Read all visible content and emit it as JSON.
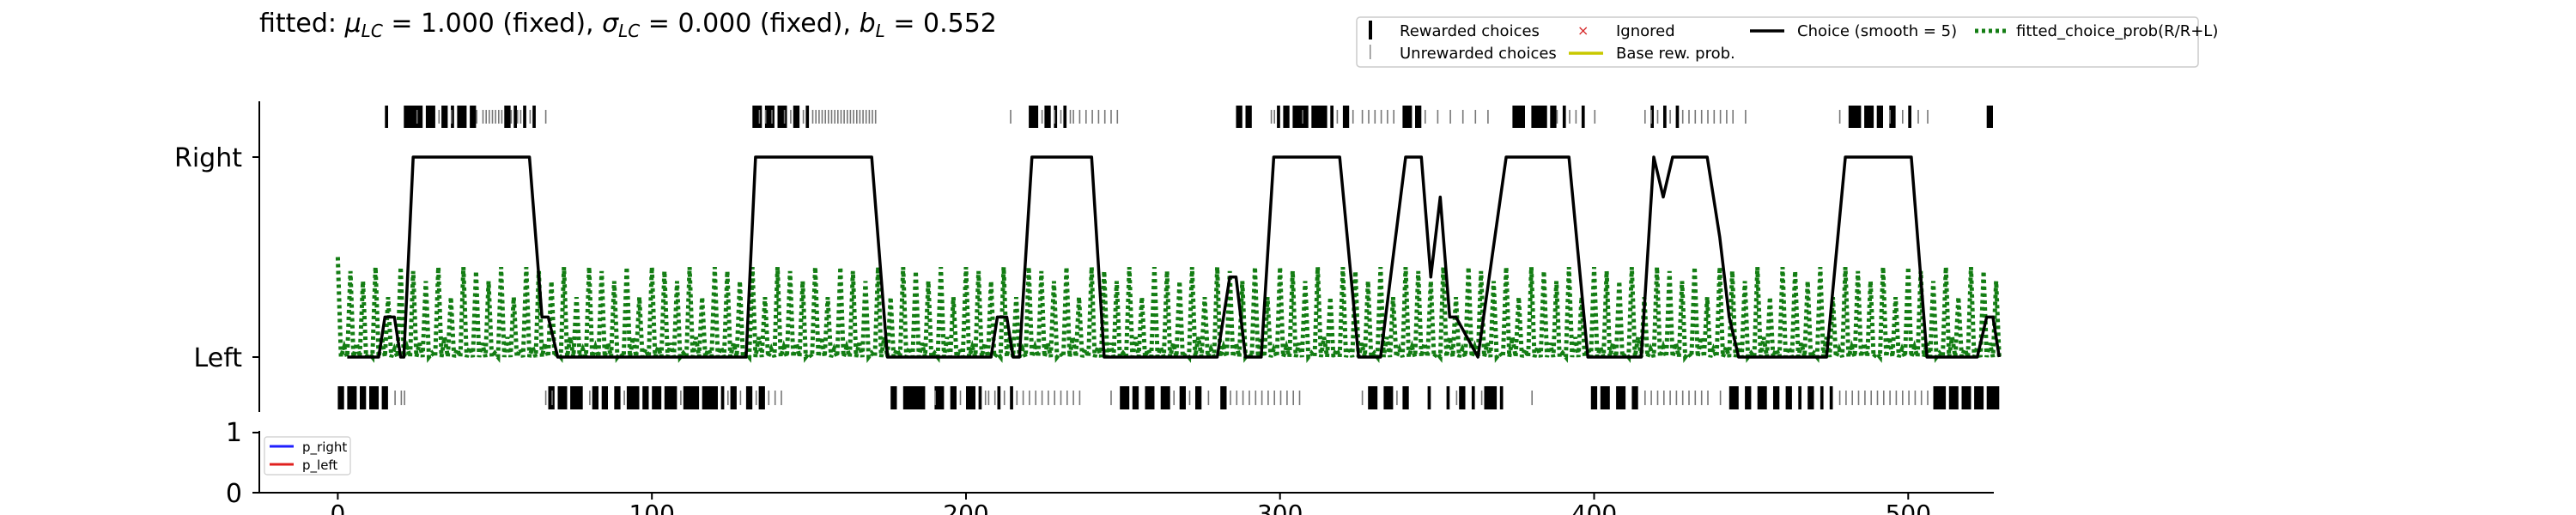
{
  "chart_data": [
    {
      "type": "line",
      "title": "fitted: μLC = 1.000 (fixed), σLC = 0.000 (fixed), bL = 0.552",
      "title_parts": {
        "prefix": "fitted: ",
        "mu_symbol": "μ",
        "mu_sub": "LC",
        "mu_value": " = 1.000 (fixed), ",
        "sigma_symbol": "σ",
        "sigma_sub": "LC",
        "sigma_value": " = 0.000 (fixed), ",
        "b_symbol": "b",
        "b_sub": "L",
        "b_value": " = 0.552"
      },
      "xlim": [
        -25,
        530
      ],
      "ylim": [
        -0.28,
        1.28
      ],
      "ytick_labels": [
        "Left",
        "Right"
      ],
      "ytick_values": [
        0,
        1
      ],
      "legend": {
        "placement": "top-right",
        "entries": [
          {
            "label": "Rewarded choices",
            "style": "thick-tick",
            "color": "#000000"
          },
          {
            "label": "Unrewarded choices",
            "style": "thin-tick",
            "color": "#888888"
          },
          {
            "label": "Ignored",
            "style": "x-marker",
            "color": "#d62728"
          },
          {
            "label": "Base rew. prob.",
            "style": "line",
            "color": "#c8c800"
          },
          {
            "label": "Choice (smooth = 5)",
            "style": "line",
            "color": "#000000"
          },
          {
            "label": "fitted_choice_prob(R/R+L)",
            "style": "dotted",
            "color": "#137d13"
          }
        ]
      },
      "series": [
        {
          "name": "Choice (smooth = 5)",
          "color": "#000000",
          "points": [
            [
              3,
              0
            ],
            [
              13,
              0
            ],
            [
              15,
              0.2
            ],
            [
              18,
              0.2
            ],
            [
              20,
              0
            ],
            [
              21,
              0
            ],
            [
              24,
              1
            ],
            [
              61,
              1
            ],
            [
              63,
              0.6
            ],
            [
              65,
              0.2
            ],
            [
              67,
              0.2
            ],
            [
              70,
              0
            ],
            [
              130,
              0
            ],
            [
              133,
              1
            ],
            [
              170,
              1
            ],
            [
              175,
              0
            ],
            [
              208,
              0
            ],
            [
              210,
              0.2
            ],
            [
              213,
              0.2
            ],
            [
              215,
              0
            ],
            [
              217,
              0
            ],
            [
              221,
              1
            ],
            [
              240,
              1
            ],
            [
              244,
              0
            ],
            [
              280,
              0
            ],
            [
              284,
              0.4
            ],
            [
              286,
              0.4
            ],
            [
              289,
              0
            ],
            [
              294,
              0
            ],
            [
              298,
              1
            ],
            [
              319,
              1
            ],
            [
              325,
              0
            ],
            [
              332,
              0
            ],
            [
              340,
              1
            ],
            [
              345,
              1
            ],
            [
              348,
              0.4
            ],
            [
              351,
              0.8
            ],
            [
              354,
              0.2
            ],
            [
              356,
              0.2
            ],
            [
              363,
              0
            ],
            [
              372,
              1
            ],
            [
              392,
              1
            ],
            [
              398,
              0
            ],
            [
              415,
              0
            ],
            [
              419,
              1
            ],
            [
              422,
              0.8
            ],
            [
              425,
              1
            ],
            [
              436,
              1
            ],
            [
              440,
              0.6
            ],
            [
              443,
              0.2
            ],
            [
              446,
              0
            ],
            [
              474,
              0
            ],
            [
              480,
              1
            ],
            [
              501,
              1
            ],
            [
              506,
              0
            ],
            [
              522,
              0
            ],
            [
              525,
              0.2
            ],
            [
              527,
              0.2
            ],
            [
              529,
              0
            ]
          ]
        },
        {
          "name": "fitted_choice_prob(R/R+L)",
          "color": "#137d13",
          "dotted": true,
          "x_start": 0,
          "x_end": 529,
          "pattern": [
            0.45,
            0.05,
            0.43,
            0.07,
            0.38,
            0.02,
            0.45,
            0.1,
            0.3,
            0.04
          ]
        }
      ],
      "raster": {
        "rewarded_right": [
          [
            15,
            16
          ],
          [
            21,
            27
          ],
          [
            28,
            31
          ],
          [
            33,
            35
          ],
          [
            36,
            37
          ],
          [
            38,
            41
          ],
          [
            42,
            44
          ],
          [
            53,
            55
          ],
          [
            56,
            57
          ],
          [
            59,
            60
          ],
          [
            62,
            63
          ],
          [
            132,
            135
          ],
          [
            136,
            139
          ],
          [
            140,
            143
          ],
          [
            145,
            147
          ],
          [
            149,
            150
          ],
          [
            220,
            223
          ],
          [
            225,
            227
          ],
          [
            228,
            229
          ],
          [
            231,
            232
          ],
          [
            286,
            288
          ],
          [
            289,
            291
          ],
          [
            299,
            300
          ],
          [
            301,
            303
          ],
          [
            304,
            309
          ],
          [
            310,
            315
          ],
          [
            316,
            317
          ],
          [
            320,
            322
          ],
          [
            339,
            342
          ],
          [
            343,
            345
          ],
          [
            374,
            378
          ],
          [
            380,
            385
          ],
          [
            386,
            388
          ],
          [
            390,
            391
          ],
          [
            396,
            397
          ],
          [
            418,
            419
          ],
          [
            422,
            423
          ],
          [
            426,
            427
          ],
          [
            481,
            485
          ],
          [
            486,
            489
          ],
          [
            490,
            492
          ],
          [
            494,
            496
          ],
          [
            500,
            501
          ],
          [
            525,
            527
          ]
        ],
        "unrewarded_right": [
          25,
          32,
          36,
          44,
          46,
          47,
          48,
          49,
          50,
          51,
          52,
          55,
          57,
          58,
          61,
          66,
          134,
          136,
          138,
          142,
          144,
          148,
          151,
          152,
          153,
          154,
          155,
          156,
          157,
          158,
          159,
          160,
          161,
          162,
          163,
          164,
          165,
          166,
          167,
          168,
          169,
          170,
          171,
          214,
          224,
          228,
          230,
          233,
          234,
          236,
          238,
          240,
          242,
          244,
          246,
          248,
          297,
          298,
          307,
          318,
          323,
          326,
          328,
          330,
          332,
          334,
          336,
          346,
          350,
          354,
          358,
          362,
          366,
          388,
          392,
          394,
          400,
          416,
          418,
          420,
          424,
          428,
          430,
          432,
          434,
          436,
          438,
          440,
          442,
          444,
          448,
          478,
          494,
          498,
          503,
          506
        ],
        "rewarded_left": [
          [
            0,
            2
          ],
          [
            3,
            6
          ],
          [
            7,
            9
          ],
          [
            10,
            13
          ],
          [
            14,
            16
          ],
          [
            67,
            69
          ],
          [
            70,
            73
          ],
          [
            74,
            78
          ],
          [
            81,
            83
          ],
          [
            84,
            86
          ],
          [
            88,
            90
          ],
          [
            92,
            96
          ],
          [
            97,
            99
          ],
          [
            100,
            103
          ],
          [
            104,
            108
          ],
          [
            110,
            115
          ],
          [
            116,
            121
          ],
          [
            122,
            123
          ],
          [
            125,
            127
          ],
          [
            130,
            132
          ],
          [
            134,
            136
          ],
          [
            176,
            178
          ],
          [
            180,
            187
          ],
          [
            190,
            193
          ],
          [
            195,
            197
          ],
          [
            200,
            203
          ],
          [
            204,
            205
          ],
          [
            210,
            211
          ],
          [
            214,
            215
          ],
          [
            249,
            252
          ],
          [
            253,
            255
          ],
          [
            257,
            260
          ],
          [
            262,
            265
          ],
          [
            268,
            270
          ],
          [
            273,
            275
          ],
          [
            281,
            283
          ],
          [
            328,
            331
          ],
          [
            333,
            336
          ],
          [
            339,
            341
          ],
          [
            347,
            348
          ],
          [
            353,
            354
          ],
          [
            357,
            359
          ],
          [
            361,
            362
          ],
          [
            365,
            369
          ],
          [
            370,
            371
          ],
          [
            399,
            401
          ],
          [
            402,
            405
          ],
          [
            407,
            410
          ],
          [
            412,
            414
          ],
          [
            443,
            446
          ],
          [
            448,
            450
          ],
          [
            452,
            455
          ],
          [
            457,
            459
          ],
          [
            461,
            463
          ],
          [
            465,
            466
          ],
          [
            468,
            470
          ],
          [
            472,
            473
          ],
          [
            475,
            476
          ],
          [
            508,
            512
          ],
          [
            513,
            516
          ],
          [
            517,
            520
          ],
          [
            521,
            524
          ],
          [
            525,
            529
          ]
        ],
        "unrewarded_left": [
          18,
          20,
          21,
          66,
          68,
          80,
          91,
          109,
          124,
          128,
          133,
          137,
          139,
          141,
          190,
          198,
          206,
          207,
          209,
          212,
          216,
          218,
          220,
          222,
          224,
          226,
          228,
          230,
          232,
          234,
          236,
          246,
          266,
          271,
          277,
          284,
          286,
          288,
          290,
          292,
          294,
          296,
          298,
          300,
          302,
          304,
          306,
          326,
          337,
          356,
          364,
          380,
          416,
          418,
          420,
          422,
          424,
          426,
          428,
          430,
          432,
          434,
          436,
          440,
          478,
          480,
          482,
          484,
          486,
          488,
          490,
          492,
          494,
          496,
          498,
          500,
          502,
          504,
          506
        ]
      }
    },
    {
      "type": "line",
      "xlim": [
        -25,
        530
      ],
      "ylim": [
        0,
        1
      ],
      "yticks": [
        "0",
        "1"
      ],
      "xticks": [
        "0",
        "100",
        "200",
        "300",
        "400",
        "500"
      ],
      "xtick_values": [
        0,
        100,
        200,
        300,
        400,
        500
      ],
      "legend": {
        "placement": "top-left",
        "entries": [
          {
            "label": "p_right",
            "color": "#1f1fff"
          },
          {
            "label": "p_left",
            "color": "#e0201e"
          }
        ]
      }
    }
  ]
}
